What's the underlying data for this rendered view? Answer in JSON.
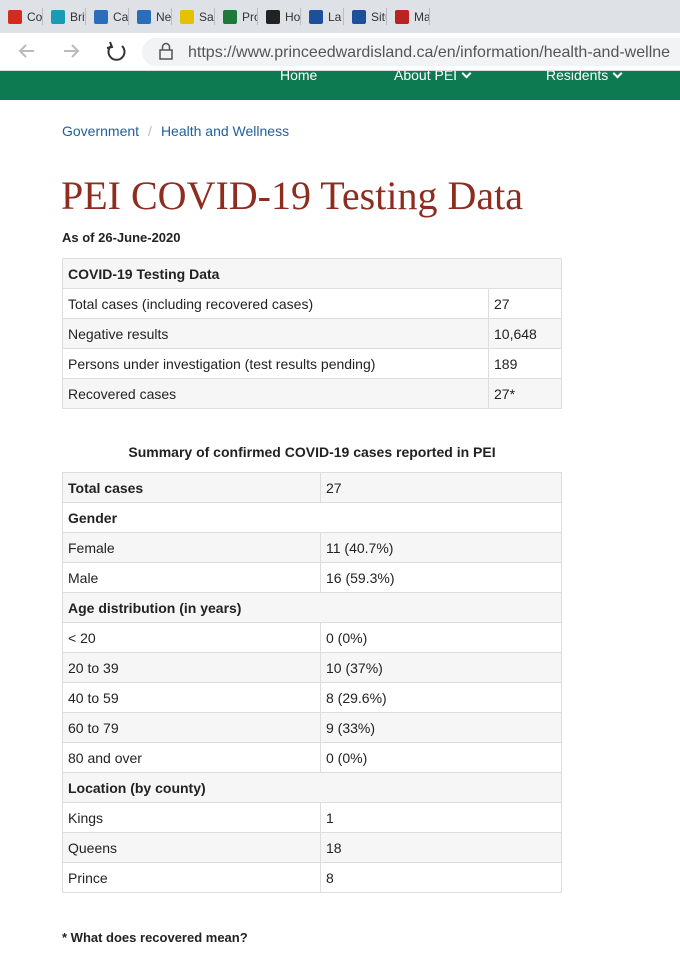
{
  "browser": {
    "tabs": [
      "Coro",
      "Britis",
      "Cases",
      "News",
      "Saska",
      "Provi",
      "How",
      "La ma",
      "Situat",
      "Maps"
    ],
    "url": "https://www.princeedwardisland.ca/en/information/health-and-wellne"
  },
  "nav": {
    "items": [
      "Home",
      "About PEI",
      "Residents"
    ]
  },
  "breadcrumb": [
    "Government",
    "Health and Wellness"
  ],
  "page": {
    "title": "PEI COVID-19 Testing Data",
    "date": "As of 26-June-2020"
  },
  "testing_table": {
    "header": "COVID-19 Testing Data",
    "rows": [
      [
        "Total cases (including recovered cases)",
        "27"
      ],
      [
        "Negative results",
        "10,648"
      ],
      [
        "Persons under investigation (test results pending)",
        "189"
      ],
      [
        "Recovered cases",
        "27*"
      ]
    ]
  },
  "summary_table": {
    "caption": "Summary of confirmed COVID-19 cases reported in PEI",
    "rows": [
      [
        "Total cases",
        "27"
      ],
      [
        "Gender"
      ],
      [
        "Female",
        "11 (40.7%)"
      ],
      [
        "Male",
        "16 (59.3%)"
      ],
      [
        "Age distribution (in years)"
      ],
      [
        "< 20",
        "0 (0%)"
      ],
      [
        "20 to 39",
        "10 (37%)"
      ],
      [
        "40 to 59",
        "8 (29.6%)"
      ],
      [
        "60 to 79",
        "9 (33%)"
      ],
      [
        "80 and over",
        "0 (0%)"
      ],
      [
        "Location (by county)"
      ],
      [
        "Kings",
        "1"
      ],
      [
        "Queens",
        "18"
      ],
      [
        "Prince",
        "8"
      ]
    ]
  },
  "footnote": "* What does recovered mean?"
}
